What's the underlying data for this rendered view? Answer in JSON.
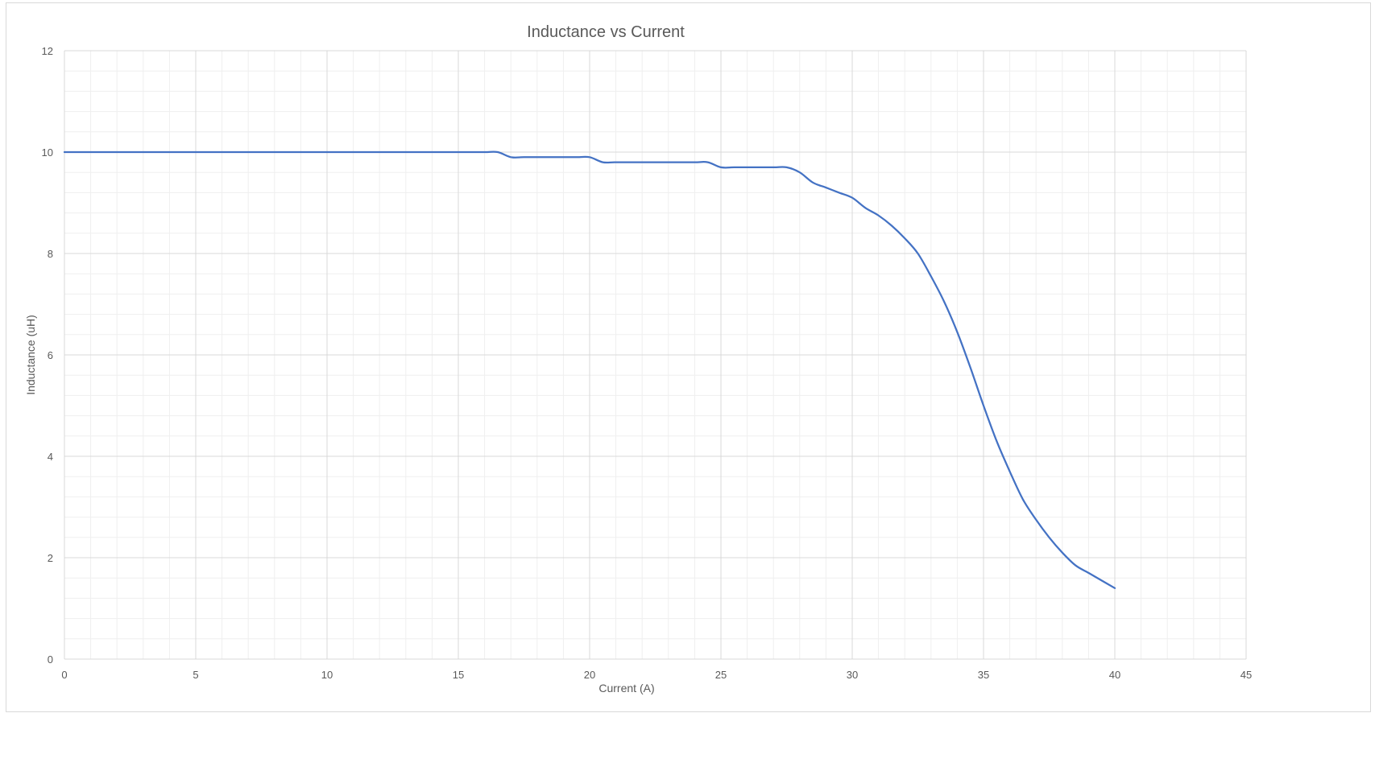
{
  "chart_data": {
    "type": "line",
    "title": "Inductance vs Current",
    "xlabel": "Current (A)",
    "ylabel": "Inductance (uH)",
    "xlim": [
      0,
      45
    ],
    "ylim": [
      0,
      12
    ],
    "x_ticks": [
      0,
      5,
      10,
      15,
      20,
      25,
      30,
      35,
      40,
      45
    ],
    "y_ticks": [
      0,
      2,
      4,
      6,
      8,
      10,
      12
    ],
    "grid": "major and minor",
    "legend": "none",
    "series": [
      {
        "color": "#4472c4",
        "x": [
          0,
          5,
          10,
          15,
          16,
          16.5,
          17,
          17.5,
          18,
          19,
          19.5,
          20,
          20.5,
          21,
          22,
          23,
          24,
          24.5,
          25,
          25.5,
          26,
          27,
          27.5,
          28,
          28.5,
          29,
          29.5,
          30,
          30.5,
          31,
          31.5,
          32,
          32.5,
          33,
          33.5,
          34,
          34.5,
          35,
          35.5,
          36,
          36.5,
          37,
          37.5,
          38,
          38.5,
          39,
          39.5,
          40
        ],
        "y": [
          10,
          10,
          10,
          10,
          10,
          10,
          9.9,
          9.9,
          9.9,
          9.9,
          9.9,
          9.9,
          9.8,
          9.8,
          9.8,
          9.8,
          9.8,
          9.8,
          9.7,
          9.7,
          9.7,
          9.7,
          9.7,
          9.6,
          9.4,
          9.3,
          9.2,
          9.1,
          8.9,
          8.75,
          8.55,
          8.3,
          8.0,
          7.55,
          7.05,
          6.45,
          5.75,
          5.0,
          4.3,
          3.7,
          3.15,
          2.75,
          2.4,
          2.1,
          1.85,
          1.7,
          1.55,
          1.4
        ]
      }
    ]
  }
}
